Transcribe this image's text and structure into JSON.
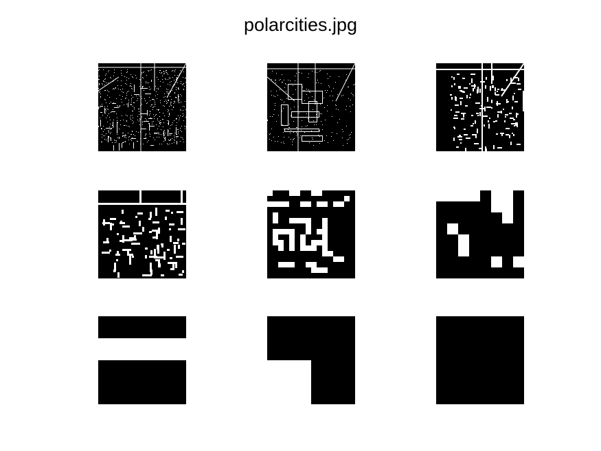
{
  "figure": {
    "title": "polarcities.jpg",
    "background_color": "#ffffff",
    "foreground_color": "#000000",
    "highlight_color": "#ffffff"
  },
  "panels": [
    {
      "row": 1,
      "col": 1,
      "kind": "edge-map",
      "detail": "very-fine"
    },
    {
      "row": 1,
      "col": 2,
      "kind": "edge-map",
      "detail": "fine"
    },
    {
      "row": 1,
      "col": 3,
      "kind": "edge-map",
      "detail": "medium-fine"
    },
    {
      "row": 2,
      "col": 1,
      "kind": "edge-map",
      "detail": "medium"
    },
    {
      "row": 2,
      "col": 2,
      "kind": "edge-map",
      "detail": "coarse"
    },
    {
      "row": 2,
      "col": 3,
      "kind": "edge-map",
      "detail": "very-coarse"
    },
    {
      "row": 3,
      "col": 1,
      "kind": "edge-map",
      "detail": "blocks-horizontal-band"
    },
    {
      "row": 3,
      "col": 2,
      "kind": "edge-map",
      "detail": "blocks-quadrant"
    },
    {
      "row": 3,
      "col": 3,
      "kind": "edge-map",
      "detail": "solid"
    }
  ]
}
